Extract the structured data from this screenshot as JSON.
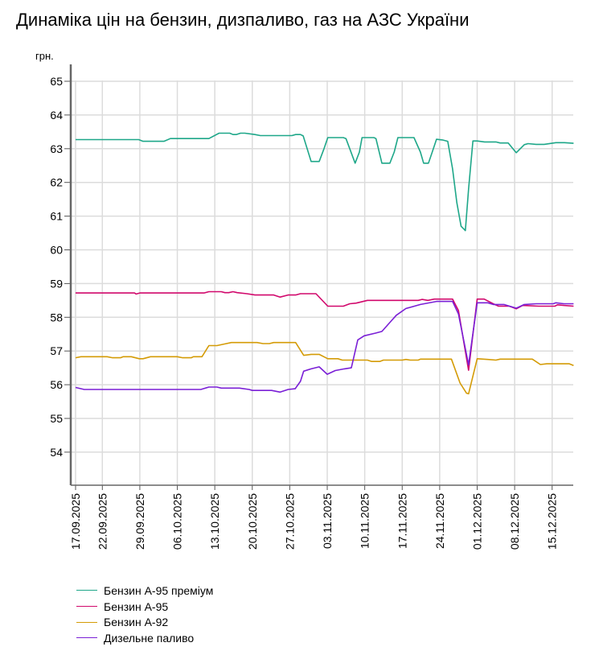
{
  "chart_data": {
    "type": "line",
    "title": "Динаміка цін на бензин, дизпаливо, газ на АЗС України",
    "ylabel": "грн.",
    "xlabel": "",
    "ylim": [
      53,
      65
    ],
    "yticks": [
      54,
      55,
      56,
      57,
      58,
      59,
      60,
      61,
      62,
      63,
      64,
      65
    ],
    "x_start_date": "17.09.2025",
    "x_unit": "days since 17.09.2025",
    "xlim": [
      0,
      93
    ],
    "xticks": [
      {
        "day": 0,
        "label": "17.09.2025"
      },
      {
        "day": 5,
        "label": "22.09.2025"
      },
      {
        "day": 12,
        "label": "29.09.2025"
      },
      {
        "day": 19,
        "label": "06.10.2025"
      },
      {
        "day": 26,
        "label": "13.10.2025"
      },
      {
        "day": 33,
        "label": "20.10.2025"
      },
      {
        "day": 40,
        "label": "27.10.2025"
      },
      {
        "day": 47,
        "label": "03.11.2025"
      },
      {
        "day": 54,
        "label": "10.11.2025"
      },
      {
        "day": 61,
        "label": "17.11.2025"
      },
      {
        "day": 68,
        "label": "24.11.2025"
      },
      {
        "day": 75,
        "label": "01.12.2025"
      },
      {
        "day": 82,
        "label": "08.12.2025"
      },
      {
        "day": 89,
        "label": "15.12.2025"
      }
    ],
    "grid": true,
    "legend_position": "bottom-left",
    "series": [
      {
        "name": "Бензин А-95 преміум",
        "color": "#1ea789",
        "points": [
          [
            0,
            63.27
          ],
          [
            11.8,
            63.27
          ],
          [
            12.6,
            63.22
          ],
          [
            16.5,
            63.22
          ],
          [
            17.7,
            63.3
          ],
          [
            24.9,
            63.3
          ],
          [
            26.8,
            63.46
          ],
          [
            28.8,
            63.46
          ],
          [
            29.4,
            63.42
          ],
          [
            30,
            63.42
          ],
          [
            30.8,
            63.46
          ],
          [
            31.6,
            63.46
          ],
          [
            33.5,
            63.42
          ],
          [
            34.5,
            63.39
          ],
          [
            40.4,
            63.39
          ],
          [
            41.1,
            63.42
          ],
          [
            42,
            63.42
          ],
          [
            42.5,
            63.38
          ],
          [
            44,
            62.62
          ],
          [
            45.5,
            62.62
          ],
          [
            46.4,
            63.0
          ],
          [
            47.1,
            63.33
          ],
          [
            50,
            63.33
          ],
          [
            50.5,
            63.3
          ],
          [
            52.2,
            62.57
          ],
          [
            53,
            62.9
          ],
          [
            53.5,
            63.33
          ],
          [
            55.7,
            63.33
          ],
          [
            56.1,
            63.3
          ],
          [
            57.2,
            62.57
          ],
          [
            58.7,
            62.57
          ],
          [
            59.5,
            62.9
          ],
          [
            60.2,
            63.33
          ],
          [
            63.2,
            63.33
          ],
          [
            64.4,
            62.9
          ],
          [
            65,
            62.57
          ],
          [
            65.9,
            62.57
          ],
          [
            66.6,
            62.9
          ],
          [
            67.4,
            63.28
          ],
          [
            68.5,
            63.26
          ],
          [
            69.5,
            63.22
          ],
          [
            70.4,
            62.4
          ],
          [
            71.2,
            61.4
          ],
          [
            72,
            60.7
          ],
          [
            72.8,
            60.57
          ],
          [
            73.4,
            61.8
          ],
          [
            74.2,
            63.23
          ],
          [
            75,
            63.23
          ],
          [
            76.4,
            63.2
          ],
          [
            78.5,
            63.2
          ],
          [
            79.3,
            63.17
          ],
          [
            80.8,
            63.17
          ],
          [
            82.3,
            62.88
          ],
          [
            83.8,
            63.12
          ],
          [
            84.5,
            63.15
          ],
          [
            86,
            63.13
          ],
          [
            87.5,
            63.13
          ],
          [
            89.7,
            63.18
          ],
          [
            91.3,
            63.18
          ],
          [
            93,
            63.16
          ]
        ]
      },
      {
        "name": "Бензин А-95",
        "color": "#d1086c",
        "points": [
          [
            0,
            58.72
          ],
          [
            11,
            58.72
          ],
          [
            11.3,
            58.69
          ],
          [
            12,
            58.72
          ],
          [
            24,
            58.72
          ],
          [
            24.9,
            58.76
          ],
          [
            27.2,
            58.76
          ],
          [
            27.9,
            58.73
          ],
          [
            28.6,
            58.73
          ],
          [
            29.4,
            58.76
          ],
          [
            30.2,
            58.73
          ],
          [
            32,
            58.7
          ],
          [
            33.5,
            58.66
          ],
          [
            37,
            58.66
          ],
          [
            38.2,
            58.6
          ],
          [
            39.7,
            58.66
          ],
          [
            41.1,
            58.66
          ],
          [
            42,
            58.7
          ],
          [
            44.9,
            58.7
          ],
          [
            47.1,
            58.33
          ],
          [
            50,
            58.33
          ],
          [
            51.2,
            58.4
          ],
          [
            52.4,
            58.42
          ],
          [
            54.5,
            58.5
          ],
          [
            64,
            58.5
          ],
          [
            64.7,
            58.53
          ],
          [
            65.8,
            58.5
          ],
          [
            67,
            58.54
          ],
          [
            70.4,
            58.54
          ],
          [
            71.5,
            58.2
          ],
          [
            73.4,
            56.43
          ],
          [
            75,
            58.54
          ],
          [
            76.3,
            58.54
          ],
          [
            78,
            58.4
          ],
          [
            79,
            58.33
          ],
          [
            81,
            58.33
          ],
          [
            82.3,
            58.25
          ],
          [
            83.5,
            58.35
          ],
          [
            86.5,
            58.33
          ],
          [
            89.5,
            58.33
          ],
          [
            90,
            58.37
          ],
          [
            91.2,
            58.35
          ],
          [
            93,
            58.33
          ]
        ]
      },
      {
        "name": "Бензин А-92",
        "color": "#d49b06",
        "points": [
          [
            0,
            56.8
          ],
          [
            1,
            56.83
          ],
          [
            5.9,
            56.83
          ],
          [
            6.9,
            56.8
          ],
          [
            8.4,
            56.8
          ],
          [
            8.9,
            56.83
          ],
          [
            10.4,
            56.83
          ],
          [
            11.9,
            56.77
          ],
          [
            12.6,
            56.77
          ],
          [
            14,
            56.83
          ],
          [
            19,
            56.83
          ],
          [
            20,
            56.8
          ],
          [
            21.6,
            56.8
          ],
          [
            22,
            56.83
          ],
          [
            23.6,
            56.83
          ],
          [
            24.9,
            57.16
          ],
          [
            26.4,
            57.16
          ],
          [
            27.9,
            57.21
          ],
          [
            29.1,
            57.25
          ],
          [
            33.9,
            57.25
          ],
          [
            35,
            57.22
          ],
          [
            36.2,
            57.22
          ],
          [
            37,
            57.25
          ],
          [
            41.1,
            57.25
          ],
          [
            42.6,
            56.87
          ],
          [
            44,
            56.9
          ],
          [
            45.5,
            56.9
          ],
          [
            47.1,
            56.77
          ],
          [
            49,
            56.77
          ],
          [
            49.8,
            56.73
          ],
          [
            54.5,
            56.73
          ],
          [
            55.3,
            56.69
          ],
          [
            56.8,
            56.69
          ],
          [
            57.5,
            56.73
          ],
          [
            61,
            56.73
          ],
          [
            61.7,
            56.75
          ],
          [
            62.5,
            56.73
          ],
          [
            64,
            56.73
          ],
          [
            64.4,
            56.76
          ],
          [
            70.2,
            56.76
          ],
          [
            71.8,
            56.05
          ],
          [
            73,
            55.75
          ],
          [
            73.4,
            55.73
          ],
          [
            75,
            56.77
          ],
          [
            77,
            56.75
          ],
          [
            78.5,
            56.73
          ],
          [
            79.3,
            56.76
          ],
          [
            85.3,
            56.76
          ],
          [
            86.8,
            56.6
          ],
          [
            88,
            56.62
          ],
          [
            92.2,
            56.62
          ],
          [
            93,
            56.57
          ]
        ]
      },
      {
        "name": "Дизельне паливо",
        "color": "#7a1fd6",
        "points": [
          [
            0,
            55.92
          ],
          [
            1.6,
            55.86
          ],
          [
            23.4,
            55.86
          ],
          [
            24.9,
            55.93
          ],
          [
            26.4,
            55.93
          ],
          [
            27.2,
            55.9
          ],
          [
            30.6,
            55.9
          ],
          [
            32.4,
            55.86
          ],
          [
            33,
            55.83
          ],
          [
            36.6,
            55.83
          ],
          [
            38.2,
            55.78
          ],
          [
            39.7,
            55.86
          ],
          [
            41,
            55.88
          ],
          [
            42,
            56.1
          ],
          [
            42.6,
            56.4
          ],
          [
            44,
            56.47
          ],
          [
            45.5,
            56.53
          ],
          [
            47,
            56.31
          ],
          [
            48.5,
            56.42
          ],
          [
            50.2,
            56.47
          ],
          [
            51.5,
            56.5
          ],
          [
            52.7,
            57.33
          ],
          [
            53.9,
            57.45
          ],
          [
            56,
            57.53
          ],
          [
            57.2,
            57.58
          ],
          [
            59,
            57.9
          ],
          [
            59.9,
            58.06
          ],
          [
            61.7,
            58.26
          ],
          [
            64.4,
            58.38
          ],
          [
            67.4,
            58.47
          ],
          [
            70.4,
            58.47
          ],
          [
            71.5,
            58.1
          ],
          [
            73.4,
            56.59
          ],
          [
            75,
            58.43
          ],
          [
            77,
            58.43
          ],
          [
            78,
            58.38
          ],
          [
            80,
            58.38
          ],
          [
            82.3,
            58.27
          ],
          [
            83.8,
            58.38
          ],
          [
            86,
            58.4
          ],
          [
            89.2,
            58.4
          ],
          [
            89.7,
            58.43
          ],
          [
            91.2,
            58.4
          ],
          [
            93,
            58.4
          ]
        ]
      }
    ]
  }
}
